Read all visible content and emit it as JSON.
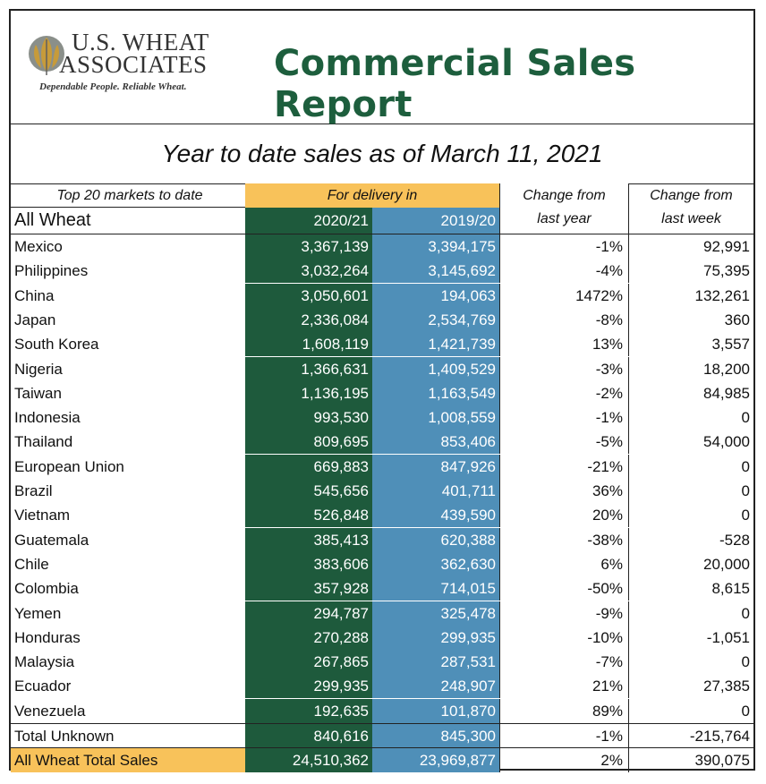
{
  "logo": {
    "line1": "U.S. WHEAT",
    "line2": "ASSOCIATES",
    "tagline": "Dependable People. Reliable Wheat.",
    "icon": "wheat-globe-icon"
  },
  "title": "Commercial Sales Report",
  "subtitle": "Year to date sales as of March 11, 2021",
  "headers": {
    "markets": "Top 20 markets to date",
    "delivery": "For delivery in",
    "change_year": "Change from\nlast year",
    "change_year_1": "Change from",
    "change_year_2": "last year",
    "change_week_1": "Change from",
    "change_week_2": "last week",
    "category": "All Wheat",
    "year_current": "2020/21",
    "year_prior": "2019/20"
  },
  "rows": [
    {
      "market": "Mexico",
      "current": "3,367,139",
      "prior": "3,394,175",
      "change_year": "-1%",
      "change_week": "92,991"
    },
    {
      "market": "Philippines",
      "current": "3,032,264",
      "prior": "3,145,692",
      "change_year": "-4%",
      "change_week": "75,395"
    },
    {
      "market": "China",
      "current": "3,050,601",
      "prior": "194,063",
      "change_year": "1472%",
      "change_week": "132,261"
    },
    {
      "market": "Japan",
      "current": "2,336,084",
      "prior": "2,534,769",
      "change_year": "-8%",
      "change_week": "360"
    },
    {
      "market": "South Korea",
      "current": "1,608,119",
      "prior": "1,421,739",
      "change_year": "13%",
      "change_week": "3,557"
    },
    {
      "market": "Nigeria",
      "current": "1,366,631",
      "prior": "1,409,529",
      "change_year": "-3%",
      "change_week": "18,200"
    },
    {
      "market": "Taiwan",
      "current": "1,136,195",
      "prior": "1,163,549",
      "change_year": "-2%",
      "change_week": "84,985"
    },
    {
      "market": "Indonesia",
      "current": "993,530",
      "prior": "1,008,559",
      "change_year": "-1%",
      "change_week": "0"
    },
    {
      "market": "Thailand",
      "current": "809,695",
      "prior": "853,406",
      "change_year": "-5%",
      "change_week": "54,000"
    },
    {
      "market": "European Union",
      "current": "669,883",
      "prior": "847,926",
      "change_year": "-21%",
      "change_week": "0"
    },
    {
      "market": "Brazil",
      "current": "545,656",
      "prior": "401,711",
      "change_year": "36%",
      "change_week": "0"
    },
    {
      "market": "Vietnam",
      "current": "526,848",
      "prior": "439,590",
      "change_year": "20%",
      "change_week": "0"
    },
    {
      "market": "Guatemala",
      "current": "385,413",
      "prior": "620,388",
      "change_year": "-38%",
      "change_week": "-528"
    },
    {
      "market": "Chile",
      "current": "383,606",
      "prior": "362,630",
      "change_year": "6%",
      "change_week": "20,000"
    },
    {
      "market": "Colombia",
      "current": "357,928",
      "prior": "714,015",
      "change_year": "-50%",
      "change_week": "8,615"
    },
    {
      "market": "Yemen",
      "current": "294,787",
      "prior": "325,478",
      "change_year": "-9%",
      "change_week": "0"
    },
    {
      "market": "Honduras",
      "current": "270,288",
      "prior": "299,935",
      "change_year": "-10%",
      "change_week": "-1,051"
    },
    {
      "market": "Malaysia",
      "current": "267,865",
      "prior": "287,531",
      "change_year": "-7%",
      "change_week": "0"
    },
    {
      "market": "Ecuador",
      "current": "299,935",
      "prior": "248,907",
      "change_year": "21%",
      "change_week": "27,385"
    },
    {
      "market": "Venezuela",
      "current": "192,635",
      "prior": "101,870",
      "change_year": "89%",
      "change_week": "0"
    }
  ],
  "unknown": {
    "market": "Total Unknown",
    "current": "840,616",
    "prior": "845,300",
    "change_year": "-1%",
    "change_week": "-215,764"
  },
  "total": {
    "market": "All Wheat Total Sales",
    "current": "24,510,362",
    "prior": "23,969,877",
    "change_year": "2%",
    "change_week": "390,075"
  },
  "colors": {
    "title_green": "#1d5e3d",
    "current_col": "#1e5a3c",
    "prior_col": "#4f8fb8",
    "highlight": "#f8c25a"
  }
}
